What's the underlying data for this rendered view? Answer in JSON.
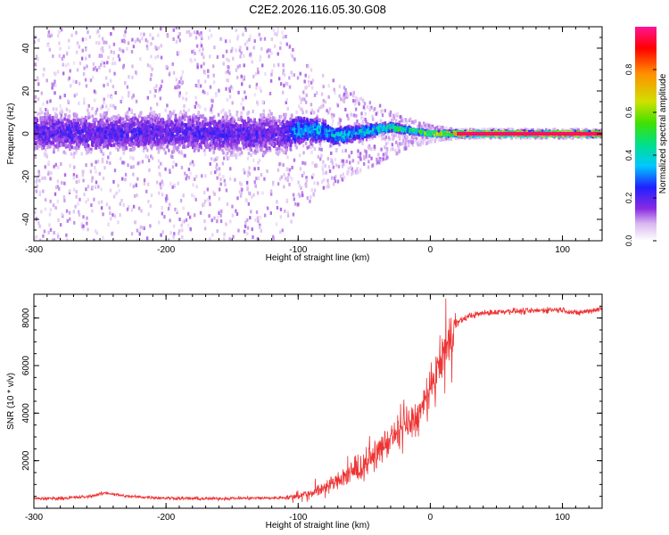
{
  "title": "C2E2.2026.116.05.30.G08",
  "chart_data": [
    {
      "type": "heatmap",
      "name": "spectrogram",
      "xlabel": "Height of straight line (km)",
      "ylabel": "Frequency (Hz)",
      "xlim": [
        -300,
        130
      ],
      "ylim": [
        -50,
        50
      ],
      "xticks": [
        -300,
        -200,
        -100,
        0,
        100
      ],
      "xtick_labels": [
        "-300",
        "-200",
        "-100",
        "0",
        "100"
      ],
      "yticks": [
        -40,
        -20,
        0,
        20,
        40
      ],
      "ytick_labels": [
        "-40",
        "-20",
        "0",
        "20",
        "40"
      ],
      "colorbar": {
        "label": "Normalized spectral amplitude",
        "range": [
          0,
          1
        ],
        "ticks": [
          0.0,
          0.2,
          0.4,
          0.6,
          0.8
        ],
        "tick_labels": [
          "0.0",
          "0.2",
          "0.4",
          "0.6",
          "0.8"
        ],
        "colors": [
          "#ffffff",
          "#d9b8f0",
          "#8a2be2",
          "#2020ff",
          "#00c8ff",
          "#00e08a",
          "#40e000",
          "#d0e000",
          "#ff9000",
          "#ff0000",
          "#ff1493"
        ]
      },
      "center_line": {
        "x": [
          -300,
          -250,
          -200,
          -150,
          -110,
          -100,
          -80,
          -70,
          -60,
          -50,
          -40,
          -30,
          -20,
          -10,
          0,
          10,
          20,
          50,
          100,
          130
        ],
        "y": [
          1,
          0,
          1,
          0,
          0,
          2,
          1,
          -1,
          0,
          1,
          2,
          3,
          2,
          1,
          0,
          0,
          0,
          0,
          0,
          0
        ]
      },
      "spread_hz": {
        "x": [
          -300,
          -200,
          -110,
          -100,
          -60,
          -20,
          0,
          20,
          130
        ],
        "y": [
          50,
          50,
          50,
          35,
          20,
          8,
          4,
          2,
          2
        ]
      },
      "amplitude_ramp": {
        "x": [
          -300,
          -110,
          -100,
          -60,
          -30,
          0,
          20,
          130
        ],
        "y": [
          0.3,
          0.3,
          0.45,
          0.5,
          0.6,
          0.75,
          0.95,
          1.0
        ]
      }
    },
    {
      "type": "line",
      "name": "snr",
      "xlabel": "Height of straight line (km)",
      "ylabel": "SNR (10 * v/v)",
      "xlim": [
        -300,
        130
      ],
      "ylim": [
        0,
        9000
      ],
      "xticks": [
        -300,
        -200,
        -100,
        0,
        100
      ],
      "xtick_labels": [
        "-300",
        "-200",
        "-100",
        "0",
        "100"
      ],
      "yticks": [
        2000,
        4000,
        6000,
        8000
      ],
      "ytick_labels": [
        "2000",
        "4000",
        "6000",
        "8000"
      ],
      "color": "#ee3333",
      "series": [
        {
          "name": "SNR",
          "x": [
            -300,
            -280,
            -260,
            -245,
            -230,
            -200,
            -170,
            -150,
            -120,
            -110,
            -100,
            -90,
            -80,
            -70,
            -60,
            -50,
            -40,
            -30,
            -20,
            -10,
            -5,
            0,
            5,
            10,
            15,
            20,
            30,
            40,
            50,
            60,
            70,
            80,
            90,
            100,
            110,
            120,
            130
          ],
          "y": [
            400,
            420,
            480,
            650,
            500,
            430,
            400,
            420,
            430,
            450,
            520,
            650,
            900,
            1150,
            1450,
            1800,
            2350,
            2900,
            3350,
            3800,
            4300,
            4900,
            5700,
            6500,
            7250,
            7800,
            8100,
            8200,
            8250,
            8300,
            8280,
            8300,
            8350,
            8350,
            8200,
            8300,
            8400
          ]
        }
      ]
    }
  ]
}
